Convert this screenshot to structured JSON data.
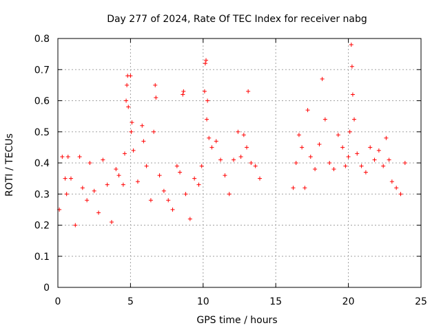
{
  "chart_data": {
    "type": "scatter",
    "title": "Day 277 of 2024, Rate Of TEC Index for receiver nabg",
    "xlabel": "GPS time / hours",
    "ylabel": "ROTI / TECUs",
    "xlim": [
      0,
      25
    ],
    "ylim": [
      0,
      0.8
    ],
    "x_ticks": [
      0,
      5,
      10,
      15,
      20,
      25
    ],
    "x_tick_labels": [
      "0",
      "5",
      "10",
      "15",
      "20",
      "25"
    ],
    "y_ticks": [
      0,
      0.1,
      0.2,
      0.3,
      0.4,
      0.5,
      0.6,
      0.7,
      0.8
    ],
    "y_tick_labels": [
      "0",
      "0.1",
      "0.2",
      "0.3",
      "0.4",
      "0.5",
      "0.6",
      "0.7",
      "0.8"
    ],
    "grid": true,
    "marker": "plus",
    "color": "#ff0000",
    "series": [
      {
        "points": [
          [
            0.1,
            0.25
          ],
          [
            0.3,
            0.42
          ],
          [
            0.5,
            0.35
          ],
          [
            0.6,
            0.3
          ],
          [
            0.7,
            0.42
          ],
          [
            0.9,
            0.35
          ],
          [
            1.2,
            0.2
          ],
          [
            1.5,
            0.42
          ],
          [
            1.7,
            0.32
          ],
          [
            2.0,
            0.28
          ],
          [
            2.2,
            0.4
          ],
          [
            2.5,
            0.31
          ],
          [
            2.8,
            0.24
          ],
          [
            3.1,
            0.41
          ],
          [
            3.4,
            0.33
          ],
          [
            3.7,
            0.21
          ],
          [
            4.0,
            0.38
          ],
          [
            4.2,
            0.36
          ],
          [
            4.5,
            0.33
          ],
          [
            4.6,
            0.43
          ],
          [
            4.7,
            0.6
          ],
          [
            4.75,
            0.65
          ],
          [
            4.8,
            0.68
          ],
          [
            4.85,
            0.58
          ],
          [
            5.0,
            0.68
          ],
          [
            5.05,
            0.5
          ],
          [
            5.1,
            0.53
          ],
          [
            5.2,
            0.44
          ],
          [
            5.5,
            0.34
          ],
          [
            5.8,
            0.52
          ],
          [
            5.9,
            0.47
          ],
          [
            6.1,
            0.39
          ],
          [
            6.4,
            0.28
          ],
          [
            6.6,
            0.5
          ],
          [
            6.7,
            0.65
          ],
          [
            6.75,
            0.61
          ],
          [
            7.0,
            0.36
          ],
          [
            7.3,
            0.31
          ],
          [
            7.6,
            0.28
          ],
          [
            7.9,
            0.25
          ],
          [
            8.2,
            0.39
          ],
          [
            8.4,
            0.37
          ],
          [
            8.6,
            0.62
          ],
          [
            8.65,
            0.63
          ],
          [
            8.8,
            0.3
          ],
          [
            9.1,
            0.22
          ],
          [
            9.4,
            0.35
          ],
          [
            9.7,
            0.33
          ],
          [
            9.9,
            0.39
          ],
          [
            10.1,
            0.63
          ],
          [
            10.15,
            0.72
          ],
          [
            10.2,
            0.73
          ],
          [
            10.25,
            0.54
          ],
          [
            10.3,
            0.6
          ],
          [
            10.4,
            0.48
          ],
          [
            10.6,
            0.45
          ],
          [
            10.9,
            0.47
          ],
          [
            11.2,
            0.41
          ],
          [
            11.5,
            0.36
          ],
          [
            11.8,
            0.3
          ],
          [
            12.1,
            0.41
          ],
          [
            12.4,
            0.5
          ],
          [
            12.6,
            0.42
          ],
          [
            12.8,
            0.49
          ],
          [
            13.0,
            0.45
          ],
          [
            13.1,
            0.63
          ],
          [
            13.3,
            0.4
          ],
          [
            13.6,
            0.39
          ],
          [
            13.9,
            0.35
          ],
          [
            16.2,
            0.32
          ],
          [
            16.4,
            0.4
          ],
          [
            16.6,
            0.49
          ],
          [
            16.8,
            0.45
          ],
          [
            17.0,
            0.32
          ],
          [
            17.2,
            0.57
          ],
          [
            17.4,
            0.42
          ],
          [
            17.7,
            0.38
          ],
          [
            18.0,
            0.46
          ],
          [
            18.2,
            0.67
          ],
          [
            18.4,
            0.54
          ],
          [
            18.7,
            0.4
          ],
          [
            19.0,
            0.38
          ],
          [
            19.3,
            0.49
          ],
          [
            19.6,
            0.45
          ],
          [
            19.8,
            0.39
          ],
          [
            20.0,
            0.42
          ],
          [
            20.1,
            0.5
          ],
          [
            20.2,
            0.78
          ],
          [
            20.25,
            0.71
          ],
          [
            20.3,
            0.62
          ],
          [
            20.4,
            0.54
          ],
          [
            20.6,
            0.43
          ],
          [
            20.9,
            0.39
          ],
          [
            21.2,
            0.37
          ],
          [
            21.5,
            0.45
          ],
          [
            21.8,
            0.41
          ],
          [
            22.1,
            0.44
          ],
          [
            22.4,
            0.39
          ],
          [
            22.6,
            0.48
          ],
          [
            22.8,
            0.41
          ],
          [
            23.0,
            0.34
          ],
          [
            23.3,
            0.32
          ],
          [
            23.6,
            0.3
          ],
          [
            23.9,
            0.4
          ]
        ]
      }
    ]
  }
}
